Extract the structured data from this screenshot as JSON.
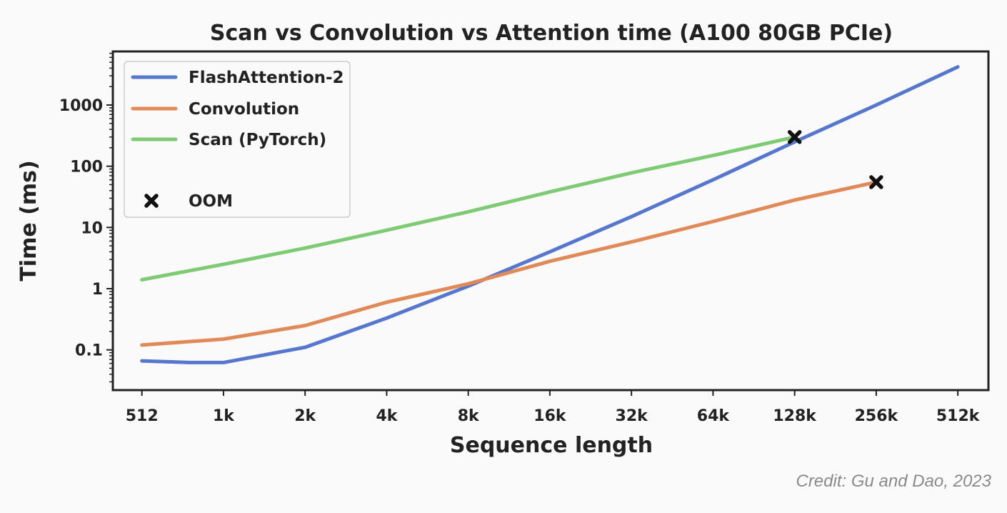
{
  "chart_data": {
    "type": "line",
    "title": "Scan vs Convolution vs Attention time (A100 80GB PCIe)",
    "xlabel": "Sequence length",
    "ylabel": "Time (ms)",
    "x_scale": "log2",
    "y_scale": "log10",
    "x_ticks": [
      "512",
      "1k",
      "2k",
      "4k",
      "8k",
      "16k",
      "32k",
      "64k",
      "128k",
      "256k",
      "512k"
    ],
    "x_tick_values": [
      512,
      1024,
      2048,
      4096,
      8192,
      16384,
      32768,
      65536,
      131072,
      262144,
      524288
    ],
    "y_ticks": [
      "0.1",
      "1",
      "10",
      "100",
      "1000"
    ],
    "y_tick_values": [
      0.1,
      1,
      10,
      100,
      1000
    ],
    "xlim": [
      400,
      680000
    ],
    "ylim": [
      0.022,
      7500
    ],
    "legend_position": "top-left",
    "series": [
      {
        "name": "FlashAttention-2",
        "color": "#5677cf",
        "x": [
          512,
          768,
          1024,
          2048,
          4096,
          8192,
          16384,
          32768,
          65536,
          131072,
          262144,
          524288
        ],
        "y": [
          0.066,
          0.062,
          0.062,
          0.11,
          0.33,
          1.1,
          4.0,
          15,
          60,
          250,
          1000,
          4200
        ]
      },
      {
        "name": "Convolution",
        "color": "#e28a57",
        "x": [
          512,
          1024,
          2048,
          4096,
          8192,
          16384,
          32768,
          65536,
          131072,
          262144
        ],
        "y": [
          0.12,
          0.15,
          0.25,
          0.6,
          1.2,
          2.8,
          5.8,
          12.5,
          28,
          55
        ]
      },
      {
        "name": "Scan (PyTorch)",
        "color": "#7dcb72",
        "x": [
          512,
          1024,
          2048,
          4096,
          8192,
          16384,
          32768,
          65536,
          131072
        ],
        "y": [
          1.4,
          2.5,
          4.6,
          9,
          18,
          38,
          78,
          150,
          300
        ]
      }
    ],
    "oom_markers": {
      "label": "OOM",
      "points": [
        {
          "x": 131072,
          "y": 300
        },
        {
          "x": 262144,
          "y": 55
        }
      ]
    }
  },
  "credit": "Credit: Gu and Dao, 2023"
}
